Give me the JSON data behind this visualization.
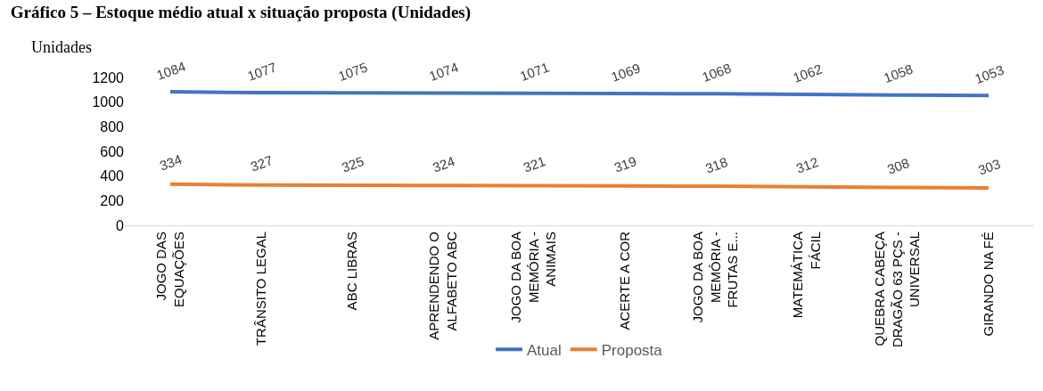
{
  "chart_data": {
    "type": "line",
    "title": "Gráfico 5 – Estoque médio atual x situação proposta (Unidades)",
    "ylabel": "Unidades",
    "categories": [
      "JOGO DAS\nEQUAÇÕES",
      "TRÂNSITO LEGAL",
      "ABC LIBRAS",
      "APRENDENDO O\nALFABETO ABC",
      "JOGO DA BOA\nMEMÓRIA -\nANIMAIS",
      "ACERTE A COR",
      "JOGO DA BOA\nMEMÓRIA -\nFRUTAS E...",
      "MATEMÁTICA\nFÁCIL",
      "QUEBRA CABEÇA\nDRAGÃO 63 PÇS -\nUNIVERSAL",
      "GIRANDO NA FÉ"
    ],
    "series": [
      {
        "name": "Atual",
        "color": "#4472c4",
        "values": [
          1084,
          1077,
          1075,
          1074,
          1071,
          1069,
          1068,
          1062,
          1058,
          1053
        ]
      },
      {
        "name": "Proposta",
        "color": "#ed7d31",
        "values": [
          334,
          327,
          325,
          324,
          321,
          319,
          318,
          312,
          308,
          303
        ]
      }
    ],
    "ylim": [
      0,
      1200
    ],
    "yticks": [
      0,
      200,
      400,
      600,
      800,
      1000,
      1200
    ],
    "grid": false,
    "legend": "bottom",
    "marker": "none",
    "line_style": "solid",
    "data_labels": true
  }
}
